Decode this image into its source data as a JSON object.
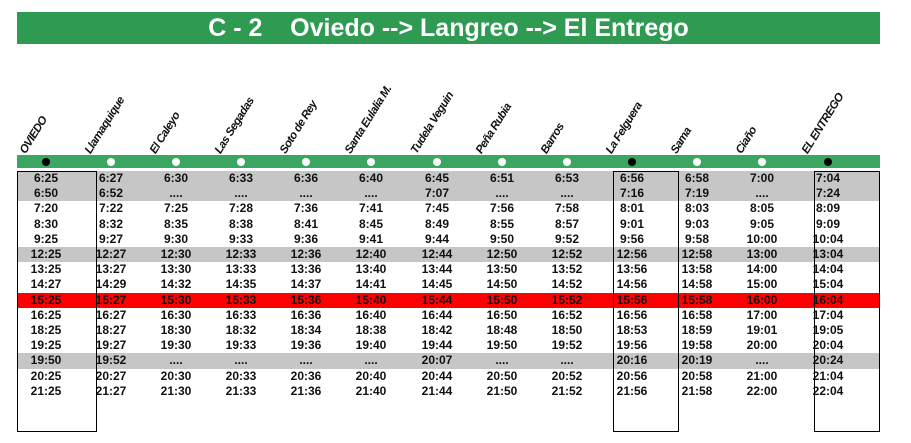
{
  "title": "C - 2    Oviedo --> Langreo --> El Entrego",
  "stations": [
    {
      "name": "OVIEDO",
      "major": true
    },
    {
      "name": "Llamaquique",
      "major": false
    },
    {
      "name": "El Caleyo",
      "major": false
    },
    {
      "name": "Las Segadas",
      "major": false
    },
    {
      "name": "Soto de Rey",
      "major": false
    },
    {
      "name": "Santa Eulalia M.",
      "major": false
    },
    {
      "name": "Tudela Veguin",
      "major": false
    },
    {
      "name": "Peña Rubia",
      "major": false
    },
    {
      "name": "Barros",
      "major": false
    },
    {
      "name": "La Felguera",
      "major": true
    },
    {
      "name": "Sama",
      "major": false
    },
    {
      "name": "Ciaño",
      "major": false
    },
    {
      "name": "EL ENTREGO",
      "major": true
    }
  ],
  "rows": [
    {
      "bg": "grey",
      "times": [
        "6:25",
        "6:27",
        "6:30",
        "6:33",
        "6:36",
        "6:40",
        "6:45",
        "6:51",
        "6:53",
        "6:56",
        "6:58",
        "7:00",
        "7:04"
      ]
    },
    {
      "bg": "grey",
      "times": [
        "6:50",
        "6:52",
        "....",
        "....",
        "....",
        "....",
        "7:07",
        "....",
        "....",
        "7:16",
        "7:19",
        "....",
        "7:24"
      ]
    },
    {
      "bg": "white",
      "times": [
        "7:20",
        "7:22",
        "7:25",
        "7:28",
        "7:36",
        "7:41",
        "7:45",
        "7:56",
        "7:58",
        "8:01",
        "8:03",
        "8:05",
        "8:09"
      ]
    },
    {
      "bg": "white",
      "times": [
        "8:30",
        "8:32",
        "8:35",
        "8:38",
        "8:41",
        "8:45",
        "8:49",
        "8:55",
        "8:57",
        "9:01",
        "9:03",
        "9:05",
        "9:09"
      ]
    },
    {
      "bg": "white",
      "times": [
        "9:25",
        "9:27",
        "9:30",
        "9:33",
        "9:36",
        "9:41",
        "9:44",
        "9:50",
        "9:52",
        "9:56",
        "9:58",
        "10:00",
        "10:04"
      ]
    },
    {
      "bg": "grey",
      "times": [
        "12:25",
        "12:27",
        "12:30",
        "12:33",
        "12:36",
        "12:40",
        "12:44",
        "12:50",
        "12:52",
        "12:56",
        "12:58",
        "13:00",
        "13:04"
      ]
    },
    {
      "bg": "white",
      "times": [
        "13:25",
        "13:27",
        "13:30",
        "13:33",
        "13:36",
        "13:40",
        "13:44",
        "13:50",
        "13:52",
        "13:56",
        "13:58",
        "14:00",
        "14:04"
      ]
    },
    {
      "bg": "white",
      "times": [
        "14:27",
        "14:29",
        "14:32",
        "14:35",
        "14:37",
        "14:41",
        "14:45",
        "14:50",
        "14:52",
        "14:56",
        "14:58",
        "15:00",
        "15:04"
      ]
    },
    {
      "bg": "red",
      "times": [
        "15:25",
        "15:27",
        "15:30",
        "15:33",
        "15:36",
        "15:40",
        "15:44",
        "15:50",
        "15:52",
        "15:56",
        "15:58",
        "16:00",
        "16:04"
      ]
    },
    {
      "bg": "white",
      "times": [
        "16:25",
        "16:27",
        "16:30",
        "16:33",
        "16:36",
        "16:40",
        "16:44",
        "16:50",
        "16:52",
        "16:56",
        "16:58",
        "17:00",
        "17:04"
      ]
    },
    {
      "bg": "white",
      "times": [
        "18:25",
        "18:27",
        "18:30",
        "18:32",
        "18:34",
        "18:38",
        "18:42",
        "18:48",
        "18:50",
        "18:53",
        "18:59",
        "19:01",
        "19:05"
      ]
    },
    {
      "bg": "white",
      "times": [
        "19:25",
        "19:27",
        "19:30",
        "19:33",
        "19:36",
        "19:40",
        "19:44",
        "19:50",
        "19:52",
        "19:56",
        "19:58",
        "20:00",
        "20:04"
      ]
    },
    {
      "bg": "grey",
      "times": [
        "19:50",
        "19:52",
        "....",
        "....",
        "....",
        "....",
        "20:07",
        "....",
        "....",
        "20:16",
        "20:19",
        "....",
        "20:24"
      ]
    },
    {
      "bg": "white",
      "times": [
        "20:25",
        "20:27",
        "20:30",
        "20:33",
        "20:36",
        "20:40",
        "20:44",
        "20:50",
        "20:52",
        "20:56",
        "20:58",
        "21:00",
        "21:04"
      ]
    },
    {
      "bg": "white",
      "times": [
        "21:25",
        "21:27",
        "21:30",
        "21:33",
        "21:36",
        "21:40",
        "21:44",
        "21:50",
        "21:52",
        "21:56",
        "21:58",
        "22:00",
        "22:04"
      ]
    }
  ],
  "colors": {
    "header_green": "#2e9a52",
    "line_green": "#3aa661",
    "grey_row": "#c6c6c6",
    "red_row": "#ff0000"
  }
}
